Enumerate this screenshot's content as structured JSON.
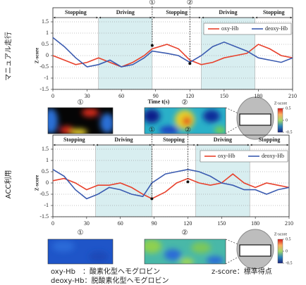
{
  "side_labels": [
    "マニュアル走行",
    "ACC利用"
  ],
  "chart_data": [
    {
      "type": "line",
      "xlabel": "Time t(s)",
      "ylabel": "Z-score",
      "x": [
        0,
        10,
        20,
        30,
        40,
        50,
        60,
        70,
        80,
        87,
        100,
        110,
        120,
        130,
        140,
        150,
        160,
        170,
        180,
        190,
        200,
        210
      ],
      "series": [
        {
          "name": "oxy-Hb",
          "color": "#e8412c",
          "values": [
            0.0,
            -0.2,
            -0.4,
            -0.3,
            -0.1,
            -0.3,
            -0.5,
            -0.3,
            0.0,
            0.3,
            0.5,
            0.3,
            -0.2,
            -0.4,
            -0.3,
            -0.1,
            0.0,
            0.1,
            0.5,
            0.3,
            0.0,
            -0.1
          ]
        },
        {
          "name": "deoxy-Hb",
          "color": "#3b5bb0",
          "values": [
            0.8,
            0.4,
            -0.1,
            -0.5,
            -0.4,
            -0.2,
            -0.5,
            -0.4,
            -0.1,
            0.2,
            0.1,
            0.0,
            -0.3,
            0.0,
            0.4,
            0.6,
            0.4,
            0.2,
            -0.1,
            -0.2,
            -0.3,
            -0.1
          ]
        }
      ],
      "xlim": [
        0,
        210
      ],
      "ylim": [
        -1.5,
        1.5
      ],
      "xticks": [
        0,
        30,
        60,
        90,
        120,
        150,
        180,
        210
      ],
      "yticks": [
        -1.5,
        -1,
        -0.5,
        0,
        0.5,
        1,
        1.5
      ],
      "grid": true,
      "legend": "upper right",
      "phases": [
        {
          "label": "Stopping",
          "start": 0,
          "end": 40,
          "shade": false
        },
        {
          "label": "Driving",
          "start": 40,
          "end": 87,
          "shade": true
        },
        {
          "label": "Stopping",
          "start": 87,
          "end": 130,
          "shade": false
        },
        {
          "label": "Driving",
          "start": 130,
          "end": 177,
          "shade": true
        },
        {
          "label": "Stopping",
          "start": 177,
          "end": 210,
          "shade": false
        }
      ],
      "markers": [
        {
          "label": "①",
          "x": 87,
          "y": 0.45
        },
        {
          "label": "②",
          "x": 120,
          "y": -0.35
        }
      ]
    },
    {
      "type": "line",
      "ylabel": "Z-score",
      "x": [
        0,
        10,
        20,
        30,
        40,
        50,
        60,
        70,
        80,
        88,
        100,
        110,
        120,
        130,
        140,
        150,
        160,
        170,
        180,
        190,
        200,
        210
      ],
      "series": [
        {
          "name": "oxy-Hb",
          "color": "#e8412c",
          "values": [
            0.1,
            0.2,
            0.0,
            -0.3,
            -0.1,
            -0.1,
            0.0,
            -0.2,
            -0.5,
            -0.7,
            -0.4,
            0.0,
            0.2,
            0.0,
            -0.1,
            0.0,
            0.4,
            0.0,
            -0.2,
            0.0,
            -0.1,
            -0.2
          ]
        },
        {
          "name": "deoxy-Hb",
          "color": "#3b5bb0",
          "values": [
            0.6,
            0.3,
            -0.3,
            -0.7,
            -0.5,
            -0.2,
            -0.3,
            -0.5,
            -0.6,
            0.0,
            0.4,
            0.5,
            0.6,
            0.5,
            0.3,
            0.0,
            -0.1,
            -0.3,
            -0.3,
            -0.5,
            -0.3,
            -0.2
          ]
        }
      ],
      "xlim": [
        0,
        210
      ],
      "ylim": [
        -1.5,
        1.5
      ],
      "xticks": [
        0,
        30,
        60,
        90,
        120,
        150,
        180,
        210
      ],
      "yticks": [
        -1.5,
        -1,
        -0.5,
        0,
        0.5,
        1,
        1.5
      ],
      "grid": true,
      "legend": "upper right",
      "phases": [
        {
          "label": "Stopping",
          "start": 0,
          "end": 38,
          "shade": false
        },
        {
          "label": "Driving",
          "start": 38,
          "end": 88,
          "shade": true
        },
        {
          "label": "Stopping",
          "start": 88,
          "end": 127,
          "shade": false
        },
        {
          "label": "Driving",
          "start": 127,
          "end": 175,
          "shade": true
        },
        {
          "label": "Stopping",
          "start": 175,
          "end": 210,
          "shade": false
        }
      ],
      "markers": [
        {
          "label": "①",
          "x": 88,
          "y": -0.7
        },
        {
          "label": "②",
          "x": 120,
          "y": 0.05
        }
      ]
    }
  ],
  "heatmaps": [
    {
      "labels": [
        "①",
        "②"
      ],
      "colorbar": {
        "title": "Z-score",
        "lim": [
          -0.5,
          0.5
        ],
        "ticks": [
          0.5,
          0,
          -0.5
        ]
      }
    },
    {
      "labels": [
        "①",
        "②"
      ],
      "colorbar": {
        "title": "Z-score",
        "lim": [
          -0.5,
          0.5
        ],
        "ticks": [
          0.5,
          0,
          -0.5
        ]
      }
    }
  ],
  "footnote": {
    "left": [
      "oxy-Hb　：酸素化型ヘモグロビン",
      "deoxy-Hb：脱酸素化型ヘモグロビン"
    ],
    "right": "z-score：標準得点"
  }
}
